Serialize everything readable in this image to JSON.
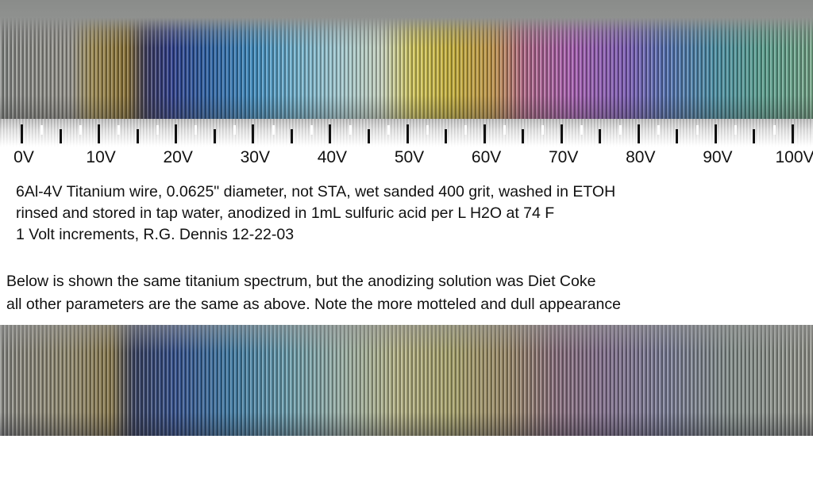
{
  "scale": {
    "labels": [
      "0V",
      "10V",
      "20V",
      "30V",
      "40V",
      "50V",
      "60V",
      "70V",
      "80V",
      "90V",
      "100V"
    ]
  },
  "caption": {
    "lines": [
      "6Al-4V Titanium wire, 0.0625\" diameter, not STA, wet sanded 400 grit, washed in ETOH",
      "rinsed and stored in tap water, anodized in 1mL sulfuric acid per L H2O at 74 F",
      "1 Volt increments, R.G. Dennis 12-22-03"
    ]
  },
  "note": {
    "lines": [
      "Below is shown the same titanium spectrum, but the anodizing solution was Diet Coke",
      "all other parameters are the same as above.  Note the more motteled and dull appearance"
    ]
  }
}
